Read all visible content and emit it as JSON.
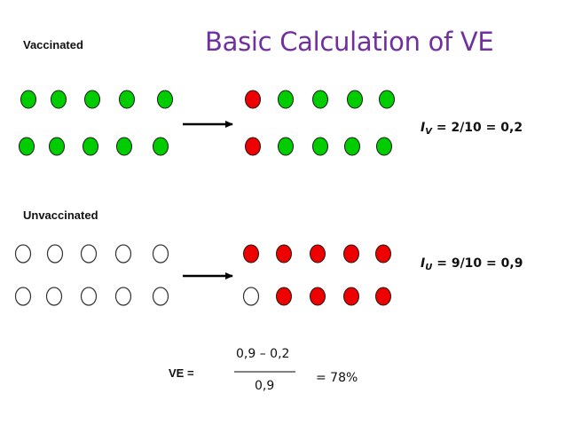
{
  "title": "Basic Calculation of VE",
  "vaccinated": {
    "label": "Vaccinated",
    "rate_var": "I",
    "rate_sub": "V",
    "rate_expr": "= 2/10 = 0,2",
    "before_top": [
      "green",
      "green",
      "green",
      "green",
      "green"
    ],
    "before_bottom": [
      "green",
      "green",
      "green",
      "green",
      "green"
    ],
    "after_top": [
      "red",
      "green",
      "green",
      "green",
      "green"
    ],
    "after_bottom": [
      "red",
      "green",
      "green",
      "green",
      "green"
    ]
  },
  "unvaccinated": {
    "label": "Unvaccinated",
    "rate_var": "I",
    "rate_sub": "U",
    "rate_expr": "= 9/10 = 0,9",
    "before_top": [
      "empty",
      "empty",
      "empty",
      "empty",
      "empty"
    ],
    "before_bottom": [
      "empty",
      "empty",
      "empty",
      "empty",
      "empty"
    ],
    "after_top": [
      "red",
      "red",
      "red",
      "red",
      "red"
    ],
    "after_bottom": [
      "empty",
      "red",
      "red",
      "red",
      "red"
    ]
  },
  "formula": {
    "label": "VE  =",
    "numerator": "0,9 – 0,2",
    "denominator": "0,9",
    "result": "= 78%"
  },
  "colors": {
    "green": "#00cc00",
    "red": "#ee0000",
    "empty": "#ffffff",
    "title": "#7030a0"
  }
}
